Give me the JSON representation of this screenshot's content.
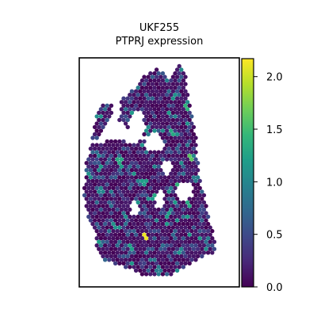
{
  "chart_data": {
    "type": "scatter",
    "title_lines": [
      "UKF255",
      "PTPRJ expression"
    ],
    "xlabel": "",
    "ylabel": "",
    "grid": false,
    "legend": "none",
    "colormap": "viridis",
    "colormap_stops": [
      "#440154",
      "#482878",
      "#3e4989",
      "#31688e",
      "#26828e",
      "#1f9e89",
      "#35b779",
      "#6ece58",
      "#b5de2b",
      "#fde725"
    ],
    "color_range": [
      0.0,
      2.15
    ],
    "colorbar_ticks": [
      "0.0",
      "0.5",
      "1.0",
      "1.5",
      "2.0"
    ],
    "colorbar_tick_values": [
      0.0,
      0.5,
      1.0,
      1.5,
      2.0
    ],
    "tissue_outline": [
      [
        0.48,
        0.05
      ],
      [
        0.54,
        0.07
      ],
      [
        0.56,
        0.1
      ],
      [
        0.62,
        0.02
      ],
      [
        0.66,
        0.05
      ],
      [
        0.68,
        0.15
      ],
      [
        0.7,
        0.22
      ],
      [
        0.73,
        0.35
      ],
      [
        0.75,
        0.5
      ],
      [
        0.79,
        0.63
      ],
      [
        0.83,
        0.75
      ],
      [
        0.86,
        0.8
      ],
      [
        0.85,
        0.85
      ],
      [
        0.76,
        0.87
      ],
      [
        0.72,
        0.89
      ],
      [
        0.6,
        0.94
      ],
      [
        0.5,
        0.96
      ],
      [
        0.4,
        0.95
      ],
      [
        0.3,
        0.92
      ],
      [
        0.15,
        0.88
      ],
      [
        0.1,
        0.82
      ],
      [
        0.1,
        0.76
      ],
      [
        0.05,
        0.7
      ],
      [
        0.03,
        0.6
      ],
      [
        0.04,
        0.45
      ],
      [
        0.08,
        0.38
      ],
      [
        0.2,
        0.36
      ],
      [
        0.35,
        0.37
      ],
      [
        0.25,
        0.27
      ],
      [
        0.26,
        0.18
      ],
      [
        0.32,
        0.15
      ],
      [
        0.38,
        0.1
      ],
      [
        0.42,
        0.07
      ]
    ],
    "tissue_holes": [
      {
        "center": [
          0.36,
          0.3
        ],
        "radius": [
          0.05,
          0.07
        ]
      },
      {
        "center": [
          0.47,
          0.37
        ],
        "radius": [
          0.06,
          0.04
        ]
      },
      {
        "center": [
          0.55,
          0.48
        ],
        "radius": [
          0.03,
          0.03
        ]
      },
      {
        "center": [
          0.66,
          0.58
        ],
        "radius": [
          0.05,
          0.04
        ]
      },
      {
        "center": [
          0.5,
          0.62
        ],
        "radius": [
          0.03,
          0.04
        ]
      },
      {
        "center": [
          0.35,
          0.66
        ],
        "radius": [
          0.03,
          0.03
        ]
      }
    ],
    "left_lobe_outline": [
      [
        0.08,
        0.35
      ],
      [
        0.12,
        0.22
      ],
      [
        0.17,
        0.19
      ],
      [
        0.21,
        0.2
      ],
      [
        0.2,
        0.26
      ],
      [
        0.18,
        0.28
      ],
      [
        0.14,
        0.34
      ],
      [
        0.11,
        0.36
      ]
    ],
    "hotspots": [
      [
        0.7,
        0.44,
        1.6
      ],
      [
        0.25,
        0.45,
        1.3
      ],
      [
        0.41,
        0.78,
        2.1
      ],
      [
        0.67,
        0.22,
        1.4
      ],
      [
        0.58,
        0.33,
        1.3
      ],
      [
        0.35,
        0.66,
        1.7
      ],
      [
        0.9,
        0.77,
        1.5
      ],
      [
        0.78,
        0.47,
        1.1
      ],
      [
        0.86,
        0.86,
        1.2
      ],
      [
        0.55,
        0.69,
        1.2
      ],
      [
        0.48,
        0.61,
        1.3
      ],
      [
        0.62,
        0.56,
        1.4
      ],
      [
        0.73,
        0.53,
        0.9
      ],
      [
        0.59,
        0.17,
        1.1
      ],
      [
        0.38,
        0.27,
        1.2
      ],
      [
        0.68,
        0.64,
        1.3
      ],
      [
        0.5,
        0.93,
        0.9
      ],
      [
        0.32,
        0.82,
        1.2
      ],
      [
        0.14,
        0.58,
        1.0
      ],
      [
        0.22,
        0.73,
        1.1
      ],
      [
        0.41,
        0.54,
        1.2
      ],
      [
        0.82,
        0.61,
        1.0
      ]
    ]
  }
}
